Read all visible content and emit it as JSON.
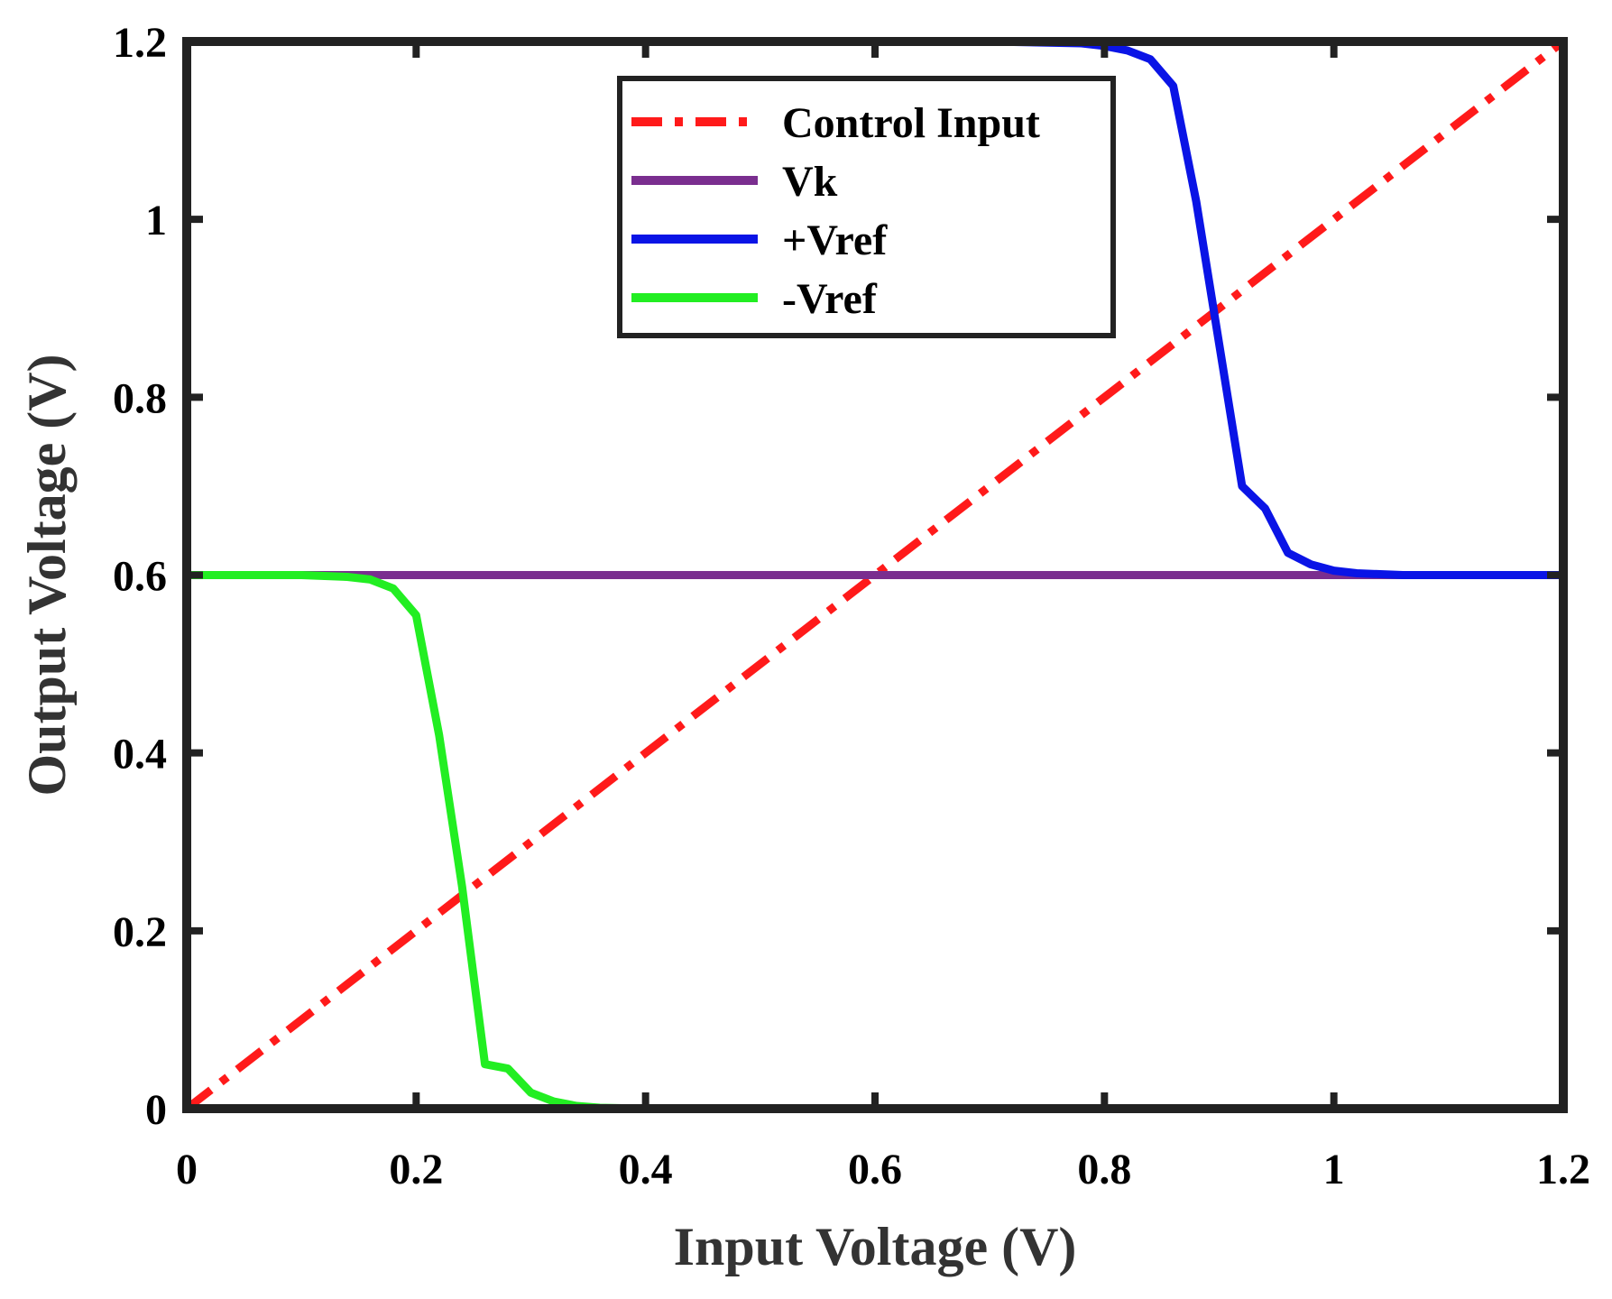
{
  "chart_data": {
    "type": "line",
    "title": "",
    "xlabel": "Input Voltage (V)",
    "ylabel": "Output Voltage (V)",
    "xlim": [
      0,
      1.2
    ],
    "ylim": [
      0,
      1.2
    ],
    "xticks": [
      0,
      0.2,
      0.4,
      0.6,
      0.8,
      1.0,
      1.2
    ],
    "xtick_labels": [
      "0",
      "0.2",
      "0.4",
      "0.6",
      "0.8",
      "1",
      "1.2"
    ],
    "yticks": [
      0,
      0.2,
      0.4,
      0.6,
      0.8,
      1.0,
      1.2
    ],
    "ytick_labels": [
      "0",
      "0.2",
      "0.4",
      "0.6",
      "0.8",
      "1",
      "1.2"
    ],
    "grid": false,
    "legend_position": "top-center",
    "series": [
      {
        "name": "Control Input",
        "color": "#ff1a1a",
        "style": "dashdot",
        "x": [
          0,
          1.2
        ],
        "y": [
          0,
          1.2
        ]
      },
      {
        "name": "Vk",
        "color": "#7a2e8f",
        "style": "solid",
        "x": [
          0,
          1.2
        ],
        "y": [
          0.6,
          0.6
        ]
      },
      {
        "name": "+Vref",
        "color": "#0a14e6",
        "style": "solid",
        "x": [
          0,
          0.7,
          0.78,
          0.8,
          0.82,
          0.84,
          0.86,
          0.88,
          0.9,
          0.92,
          0.94,
          0.96,
          0.98,
          1.0,
          1.02,
          1.06,
          1.2
        ],
        "y": [
          1.2,
          1.2,
          1.198,
          1.195,
          1.19,
          1.18,
          1.15,
          1.02,
          0.86,
          0.7,
          0.675,
          0.625,
          0.612,
          0.605,
          0.602,
          0.6,
          0.6
        ]
      },
      {
        "name": "-Vref",
        "color": "#22ee22",
        "style": "solid",
        "x": [
          0,
          0.1,
          0.14,
          0.16,
          0.18,
          0.2,
          0.22,
          0.24,
          0.26,
          0.28,
          0.3,
          0.32,
          0.34,
          0.36,
          0.4,
          1.2
        ],
        "y": [
          0.6,
          0.6,
          0.598,
          0.595,
          0.585,
          0.555,
          0.42,
          0.25,
          0.05,
          0.045,
          0.018,
          0.008,
          0.003,
          0.001,
          0,
          0
        ]
      }
    ]
  }
}
